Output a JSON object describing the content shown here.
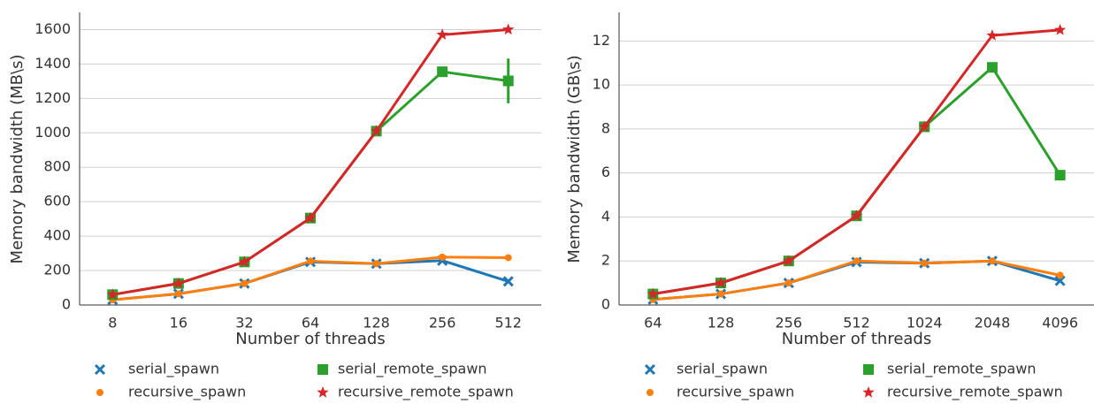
{
  "chart_data": [
    {
      "type": "line",
      "xlabel": "Number of threads",
      "ylabel": "Memory bandwidth (MB\\s)",
      "categories": [
        "8",
        "16",
        "32",
        "64",
        "128",
        "256",
        "512"
      ],
      "ylim": [
        0,
        1700
      ],
      "yticks": [
        0,
        200,
        400,
        600,
        800,
        1000,
        1200,
        1400,
        1600
      ],
      "grid": true,
      "series": [
        {
          "name": "serial_spawn",
          "color": "#1f77b4",
          "marker": "x",
          "values": [
            30,
            65,
            125,
            250,
            240,
            258,
            137
          ]
        },
        {
          "name": "recursive_spawn",
          "color": "#ff7f0e",
          "marker": "circle",
          "values": [
            30,
            65,
            125,
            255,
            240,
            278,
            275
          ]
        },
        {
          "name": "serial_remote_spawn",
          "color": "#2ca02c",
          "marker": "square",
          "values": [
            60,
            125,
            250,
            505,
            1010,
            1355,
            1302
          ],
          "errors": [
            null,
            null,
            null,
            null,
            null,
            null,
            130
          ]
        },
        {
          "name": "recursive_remote_spawn",
          "color": "#d62728",
          "marker": "star",
          "values": [
            60,
            125,
            250,
            505,
            1010,
            1570,
            1600
          ]
        }
      ]
    },
    {
      "type": "line",
      "xlabel": "Number of threads",
      "ylabel": "Memory bandwidth (GB\\s)",
      "categories": [
        "64",
        "128",
        "256",
        "512",
        "1024",
        "2048",
        "4096"
      ],
      "ylim": [
        0,
        13.3
      ],
      "yticks": [
        0,
        2,
        4,
        6,
        8,
        10,
        12
      ],
      "grid": true,
      "series": [
        {
          "name": "serial_spawn",
          "color": "#1f77b4",
          "marker": "x",
          "values": [
            0.25,
            0.5,
            1.0,
            1.95,
            1.9,
            2.0,
            1.1
          ]
        },
        {
          "name": "recursive_spawn",
          "color": "#ff7f0e",
          "marker": "circle",
          "values": [
            0.25,
            0.5,
            1.0,
            2.0,
            1.9,
            2.0,
            1.35
          ]
        },
        {
          "name": "serial_remote_spawn",
          "color": "#2ca02c",
          "marker": "square",
          "values": [
            0.5,
            1.0,
            2.0,
            4.05,
            8.1,
            10.8,
            5.9
          ]
        },
        {
          "name": "recursive_remote_spawn",
          "color": "#d62728",
          "marker": "star",
          "values": [
            0.5,
            1.0,
            2.0,
            4.05,
            8.1,
            12.25,
            12.5
          ]
        }
      ]
    }
  ]
}
